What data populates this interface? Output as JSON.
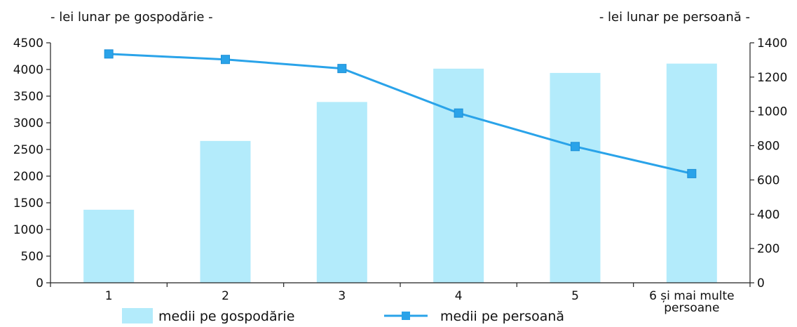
{
  "chart_data": {
    "type": "bar",
    "categories": [
      "1",
      "2",
      "3",
      "4",
      "5",
      "6 și mai multe persoane"
    ],
    "series": [
      {
        "name": "medii pe gospodărie",
        "type": "bar",
        "axis": "left",
        "color": "#b3ebfb",
        "values": [
          1370,
          2660,
          3390,
          4015,
          3935,
          4110
        ]
      },
      {
        "name": "medii pe persoană",
        "type": "line",
        "axis": "right",
        "color": "#2aa3e9",
        "values": [
          1335,
          1303,
          1250,
          990,
          795,
          637
        ]
      }
    ],
    "y_left": {
      "label": "- lei lunar pe gospodărie -",
      "range": [
        0,
        4500
      ],
      "ticks": [
        "0",
        "500",
        "1000",
        "1500",
        "2000",
        "2500",
        "3000",
        "3500",
        "4000",
        "4500"
      ]
    },
    "y_right": {
      "label": "- lei lunar pe persoană -",
      "range": [
        0,
        1400
      ],
      "ticks": [
        "0",
        "200",
        "400",
        "600",
        "800",
        "1000",
        "1200",
        "1400"
      ]
    },
    "x_tick_labels": [
      [
        "1"
      ],
      [
        "2"
      ],
      [
        "3"
      ],
      [
        "4"
      ],
      [
        "5"
      ],
      [
        "6 și mai multe",
        "persoane"
      ]
    ],
    "legend": {
      "placement": "bottom",
      "items": [
        {
          "label": "medii pe gospodărie",
          "kind": "bar"
        },
        {
          "label": "medii pe persoană",
          "kind": "line"
        }
      ]
    },
    "grid": false
  }
}
